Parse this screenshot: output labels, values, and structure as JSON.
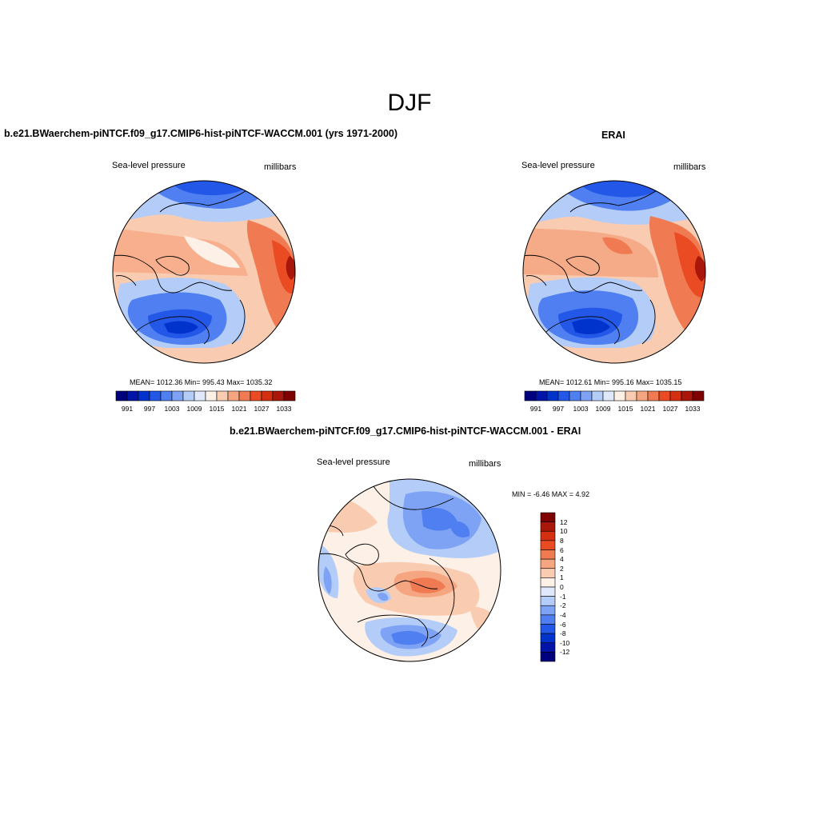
{
  "title": "DJF",
  "panels": {
    "model": {
      "title": "b.e21.BWaerchem-piNTCF.f09_g17.CMIP6-hist-piNTCF-WACCM.001 (yrs 1971-2000)",
      "left_label": "Sea-level pressure",
      "right_label": "millibars",
      "stats": "MEAN= 1012.36   Min= 995.43   Max= 1035.32"
    },
    "obs": {
      "title": "ERAI",
      "left_label": "Sea-level pressure",
      "right_label": "millibars",
      "stats": "MEAN= 1012.61   Min= 995.16   Max= 1035.15"
    },
    "diff": {
      "title": "b.e21.BWaerchem-piNTCF.f09_g17.CMIP6-hist-piNTCF-WACCM.001 - ERAI",
      "left_label": "Sea-level pressure",
      "right_label": "millibars",
      "stats": "MIN =  -6.46 MAX =   4.92"
    }
  },
  "colorbars": {
    "horizontal": {
      "colors": [
        "#00007f",
        "#0015a8",
        "#0033cc",
        "#2357e8",
        "#4f7ff0",
        "#7fa3f4",
        "#b4ccf8",
        "#dfe9fb",
        "#fdf0e6",
        "#f9ccb2",
        "#f5a580",
        "#f07a52",
        "#ea4b22",
        "#d42f10",
        "#a8170a",
        "#7f0000"
      ],
      "labels": [
        "991",
        "997",
        "1003",
        "1009",
        "1015",
        "1021",
        "1027",
        "1033"
      ]
    },
    "vertical": {
      "colors": [
        "#7f0000",
        "#a8170a",
        "#d42f10",
        "#ea4b22",
        "#f07a52",
        "#f5a580",
        "#f9ccb2",
        "#fdf0e6",
        "#dfe9fb",
        "#b4ccf8",
        "#7fa3f4",
        "#4f7ff0",
        "#2357e8",
        "#0033cc",
        "#0015a8",
        "#00007f"
      ],
      "labels": [
        "12",
        "10",
        "8",
        "6",
        "4",
        "2",
        "1",
        "0",
        "-1",
        "-2",
        "-4",
        "-6",
        "-8",
        "-10",
        "-12"
      ]
    }
  }
}
